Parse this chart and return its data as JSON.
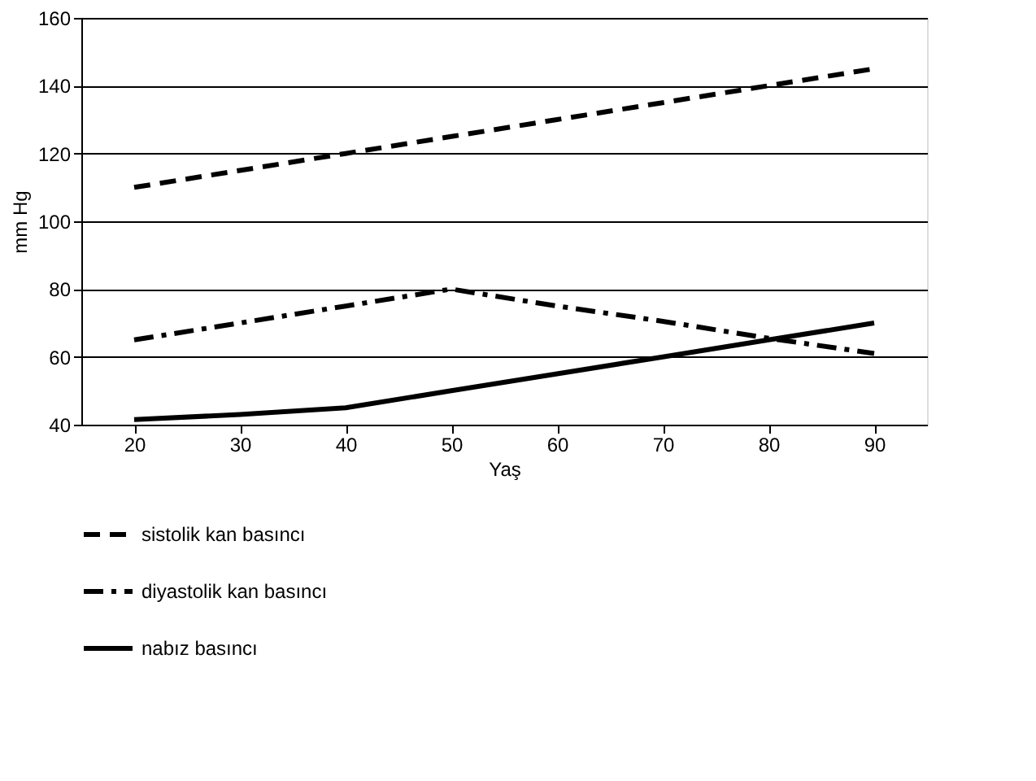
{
  "chart_data": {
    "type": "line",
    "xlabel": "Yaş",
    "ylabel": "mm Hg",
    "categories": [
      "20",
      "30",
      "40",
      "50",
      "60",
      "70",
      "80",
      "90"
    ],
    "series": [
      {
        "name": "sistolik kan basıncı",
        "color": "#000000",
        "line_style": "dashed",
        "values": [
          110,
          115,
          120,
          125,
          130,
          135,
          140,
          145
        ]
      },
      {
        "name": "diyastolik kan basıncı",
        "color": "#000000",
        "line_style": "dashdot",
        "values": [
          65,
          70,
          75,
          80,
          75,
          70.5,
          65.5,
          61
        ]
      },
      {
        "name": "nabız basıncı",
        "color": "#000000",
        "line_style": "solid",
        "values": [
          41.5,
          43,
          45,
          50,
          55,
          60,
          65,
          70
        ]
      }
    ],
    "ylim": [
      40,
      160
    ],
    "yticks": [
      40,
      60,
      80,
      100,
      120,
      140,
      160
    ],
    "grid": "y",
    "legend": "bottom",
    "marker": "none"
  }
}
